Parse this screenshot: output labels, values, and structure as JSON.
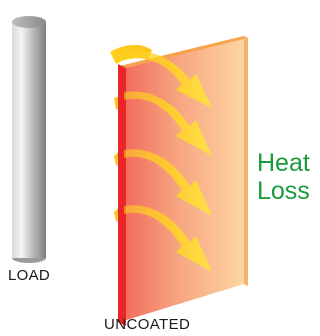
{
  "labels": {
    "load": "LOAD",
    "heat_loss_line1": "Heat",
    "heat_loss_line2": "Loss",
    "wall": "UNCOATED"
  },
  "colors": {
    "heat_loss_text": "#1a9b3c",
    "wall_edge": "#e8262a",
    "wall_face_start": "#f26b5e",
    "wall_face_end": "#fbd3a0",
    "wall_top": "#f7a04a",
    "arrow": "#ffd21f",
    "pipe_light": "#f2f2f2",
    "pipe_dark": "#8c8c8c"
  },
  "icons": {
    "pipe": "load-pipe",
    "arrows": "heat-loss-arrow"
  }
}
